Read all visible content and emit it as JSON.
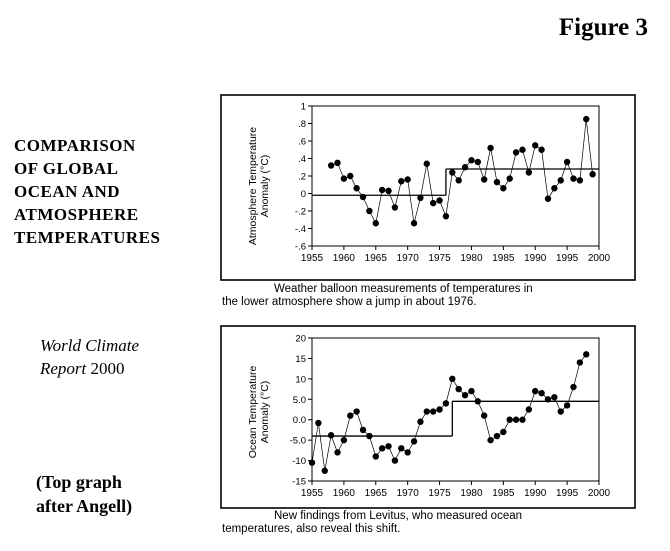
{
  "figure_label": "Figure 3",
  "left_title_lines": [
    "COMPARISON",
    "OF GLOBAL",
    "OCEAN AND",
    "ATMOSPHERE",
    "TEMPERATURES"
  ],
  "report": {
    "italic": "World Climate",
    "italic2": "Report",
    "year": "2000"
  },
  "attribution_lines": [
    "(Top graph",
    "after Angell)"
  ],
  "captions": {
    "top": [
      "Weather balloon measurements of temperatures in",
      "the lower atmosphere show a jump in about 1976."
    ],
    "bottom": [
      "New findings from Levitus, who measured ocean",
      "temperatures, also reveal this shift."
    ]
  },
  "colors": {
    "ink": "#000000"
  },
  "chart_data": [
    {
      "type": "line",
      "ylabel": "Atmosphere Temperature Anomaly (°C)",
      "ylabel_lines": [
        "Atmosphere Temperature",
        "Anomaly (°C)"
      ],
      "xlim": [
        1955,
        2000
      ],
      "ylim": [
        -0.6,
        1.0
      ],
      "x_ticks": [
        1955,
        1960,
        1965,
        1970,
        1975,
        1980,
        1985,
        1990,
        1995,
        2000
      ],
      "y_ticks": [
        -0.6,
        -0.4,
        -0.2,
        0,
        0.2,
        0.4,
        0.6,
        0.8,
        1.0
      ],
      "y_tick_labels": [
        "-.6",
        "-.4",
        "-.2",
        "0",
        ".2",
        ".4",
        ".6",
        ".8",
        "1"
      ],
      "x": [
        1958,
        1959,
        1960,
        1961,
        1962,
        1963,
        1964,
        1965,
        1966,
        1967,
        1968,
        1969,
        1970,
        1971,
        1972,
        1973,
        1974,
        1975,
        1976,
        1977,
        1978,
        1979,
        1980,
        1981,
        1982,
        1983,
        1984,
        1985,
        1986,
        1987,
        1988,
        1989,
        1990,
        1991,
        1992,
        1993,
        1994,
        1995,
        1996,
        1997,
        1998,
        1999
      ],
      "values": [
        0.32,
        0.35,
        0.17,
        0.2,
        0.06,
        -0.04,
        -0.2,
        -0.34,
        0.04,
        0.03,
        -0.16,
        0.14,
        0.16,
        -0.34,
        -0.05,
        0.34,
        -0.11,
        -0.08,
        -0.26,
        0.24,
        0.15,
        0.3,
        0.38,
        0.36,
        0.16,
        0.52,
        0.13,
        0.06,
        0.17,
        0.47,
        0.5,
        0.24,
        0.55,
        0.5,
        -0.06,
        0.06,
        0.15,
        0.36,
        0.17,
        0.15,
        0.85,
        0.22
      ],
      "reference_lines": [
        {
          "x": [
            1955,
            1976
          ],
          "y": -0.02
        },
        {
          "x": [
            1976,
            2000
          ],
          "y": 0.28
        }
      ]
    },
    {
      "type": "line",
      "ylabel": "Ocean Temperature Anomaly (°C)",
      "ylabel_lines": [
        "Ocean Temperature",
        "Anomaly (°C)"
      ],
      "xlim": [
        1955,
        2000
      ],
      "ylim": [
        -15,
        20
      ],
      "x_ticks": [
        1955,
        1960,
        1965,
        1970,
        1975,
        1980,
        1985,
        1990,
        1995,
        2000
      ],
      "y_ticks": [
        -15,
        -10,
        -5,
        0,
        5,
        10,
        15,
        20
      ],
      "y_tick_labels": [
        "-15",
        "-10",
        "-5.0",
        "0.0",
        "5.0",
        "10",
        "15",
        "20"
      ],
      "x": [
        1955,
        1956,
        1957,
        1958,
        1959,
        1960,
        1961,
        1962,
        1963,
        1964,
        1965,
        1966,
        1967,
        1968,
        1969,
        1970,
        1971,
        1972,
        1973,
        1974,
        1975,
        1976,
        1977,
        1978,
        1979,
        1980,
        1981,
        1982,
        1983,
        1984,
        1985,
        1986,
        1987,
        1988,
        1989,
        1990,
        1991,
        1992,
        1993,
        1994,
        1995,
        1996,
        1997,
        1998
      ],
      "values": [
        -10.5,
        -0.8,
        -12.5,
        -3.8,
        -8,
        -5,
        1,
        2,
        -2.5,
        -4,
        -9,
        -7,
        -6.5,
        -10,
        -7,
        -8,
        -5.3,
        -0.5,
        2,
        2,
        2.5,
        4,
        10,
        7.5,
        6,
        7,
        4.5,
        1,
        -5,
        -4,
        -3,
        0,
        0,
        0,
        2.5,
        7,
        6.5,
        5,
        5.5,
        2,
        3.5,
        8,
        14,
        16
      ],
      "reference_lines": [
        {
          "x": [
            1955,
            1977
          ],
          "y": -4
        },
        {
          "x": [
            1977,
            2000
          ],
          "y": 4.5
        }
      ]
    }
  ]
}
